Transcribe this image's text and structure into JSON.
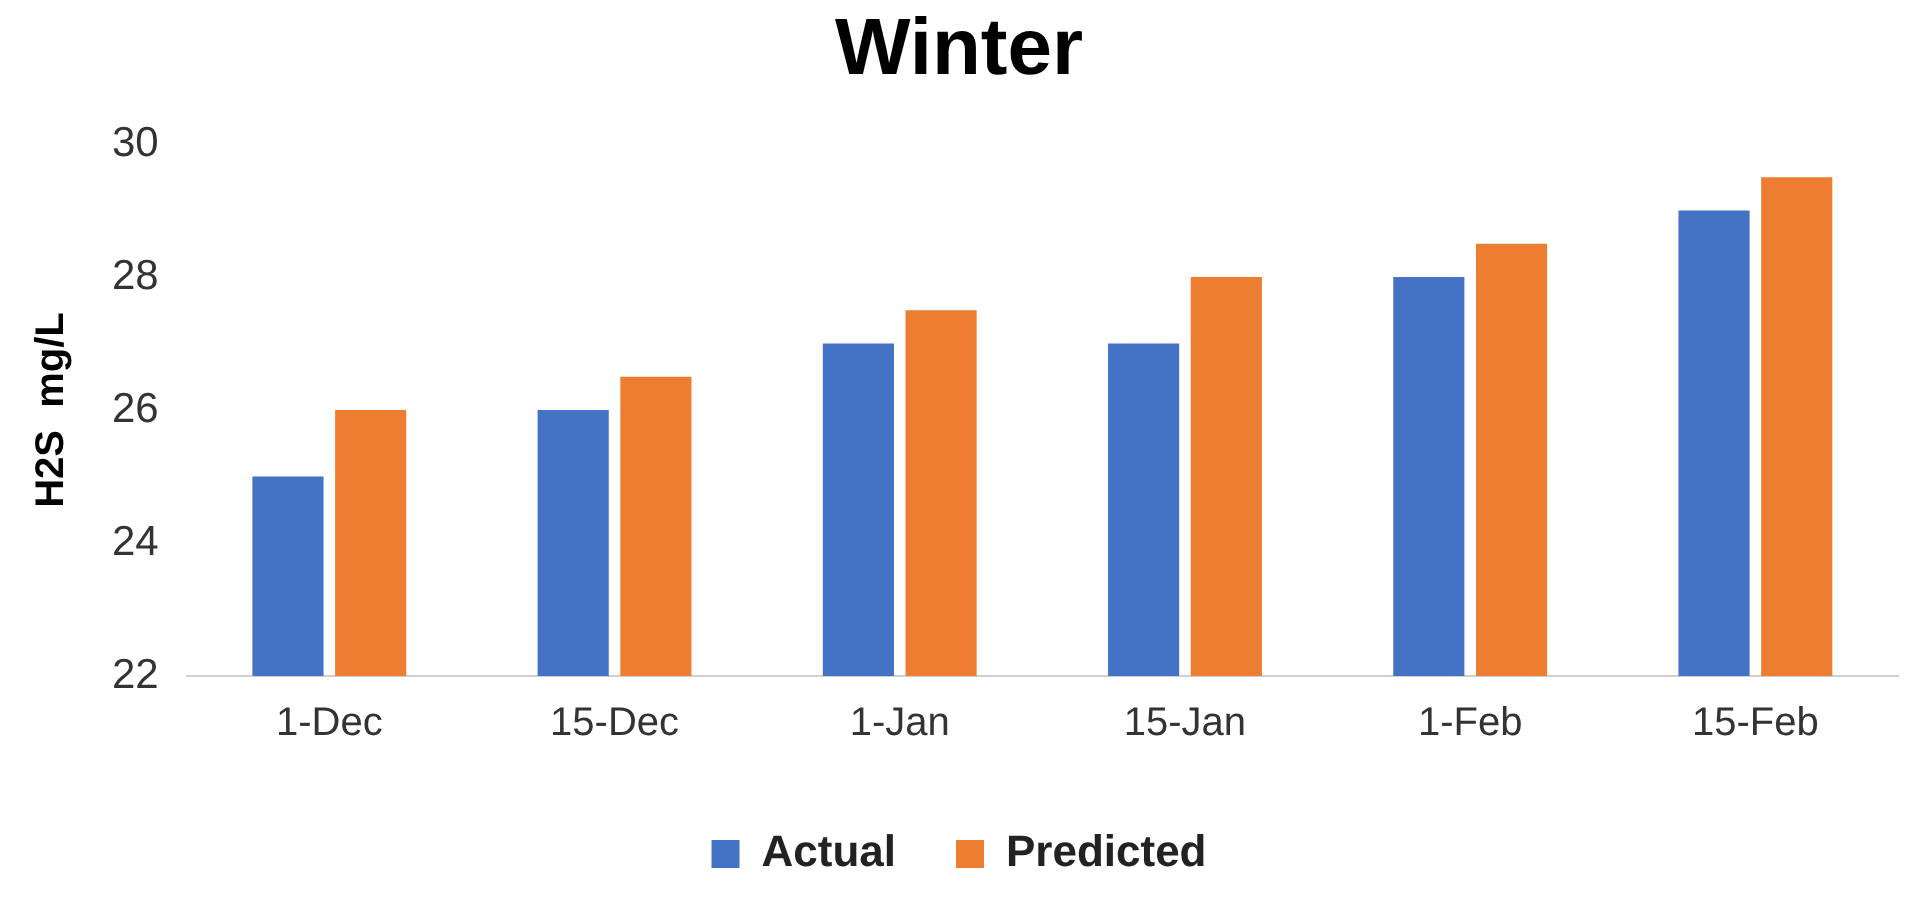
{
  "chart_data": {
    "type": "bar",
    "title": "Winter",
    "ylabel": "H2S  mg/L",
    "categories": [
      "1-Dec",
      "15-Dec",
      "1-Jan",
      "15-Jan",
      "1-Feb",
      "15-Feb"
    ],
    "series": [
      {
        "name": "Actual",
        "color": "#4472c4",
        "values": [
          25,
          26,
          27,
          27,
          28,
          29
        ]
      },
      {
        "name": "Predicted",
        "color": "#ed7d31",
        "values": [
          26,
          26.5,
          27.5,
          28,
          28.5,
          29.5
        ]
      }
    ],
    "ylim": [
      22,
      30
    ],
    "yticks": [
      22,
      24,
      26,
      28,
      30
    ],
    "grid": false,
    "legend": "bottom"
  }
}
